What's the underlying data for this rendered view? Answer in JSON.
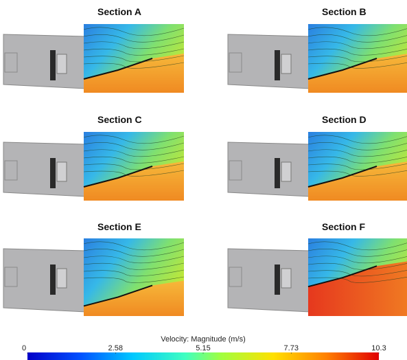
{
  "panels": [
    {
      "title": "Section A"
    },
    {
      "title": "Section B"
    },
    {
      "title": "Section C"
    },
    {
      "title": "Section D"
    },
    {
      "title": "Section E"
    },
    {
      "title": "Section F"
    }
  ],
  "colorbar": {
    "label": "Velocity: Magnitude (m/s)",
    "lim": [
      0,
      10.3
    ],
    "ticks": [
      0,
      2.58,
      5.15,
      7.73,
      10.3
    ]
  }
}
